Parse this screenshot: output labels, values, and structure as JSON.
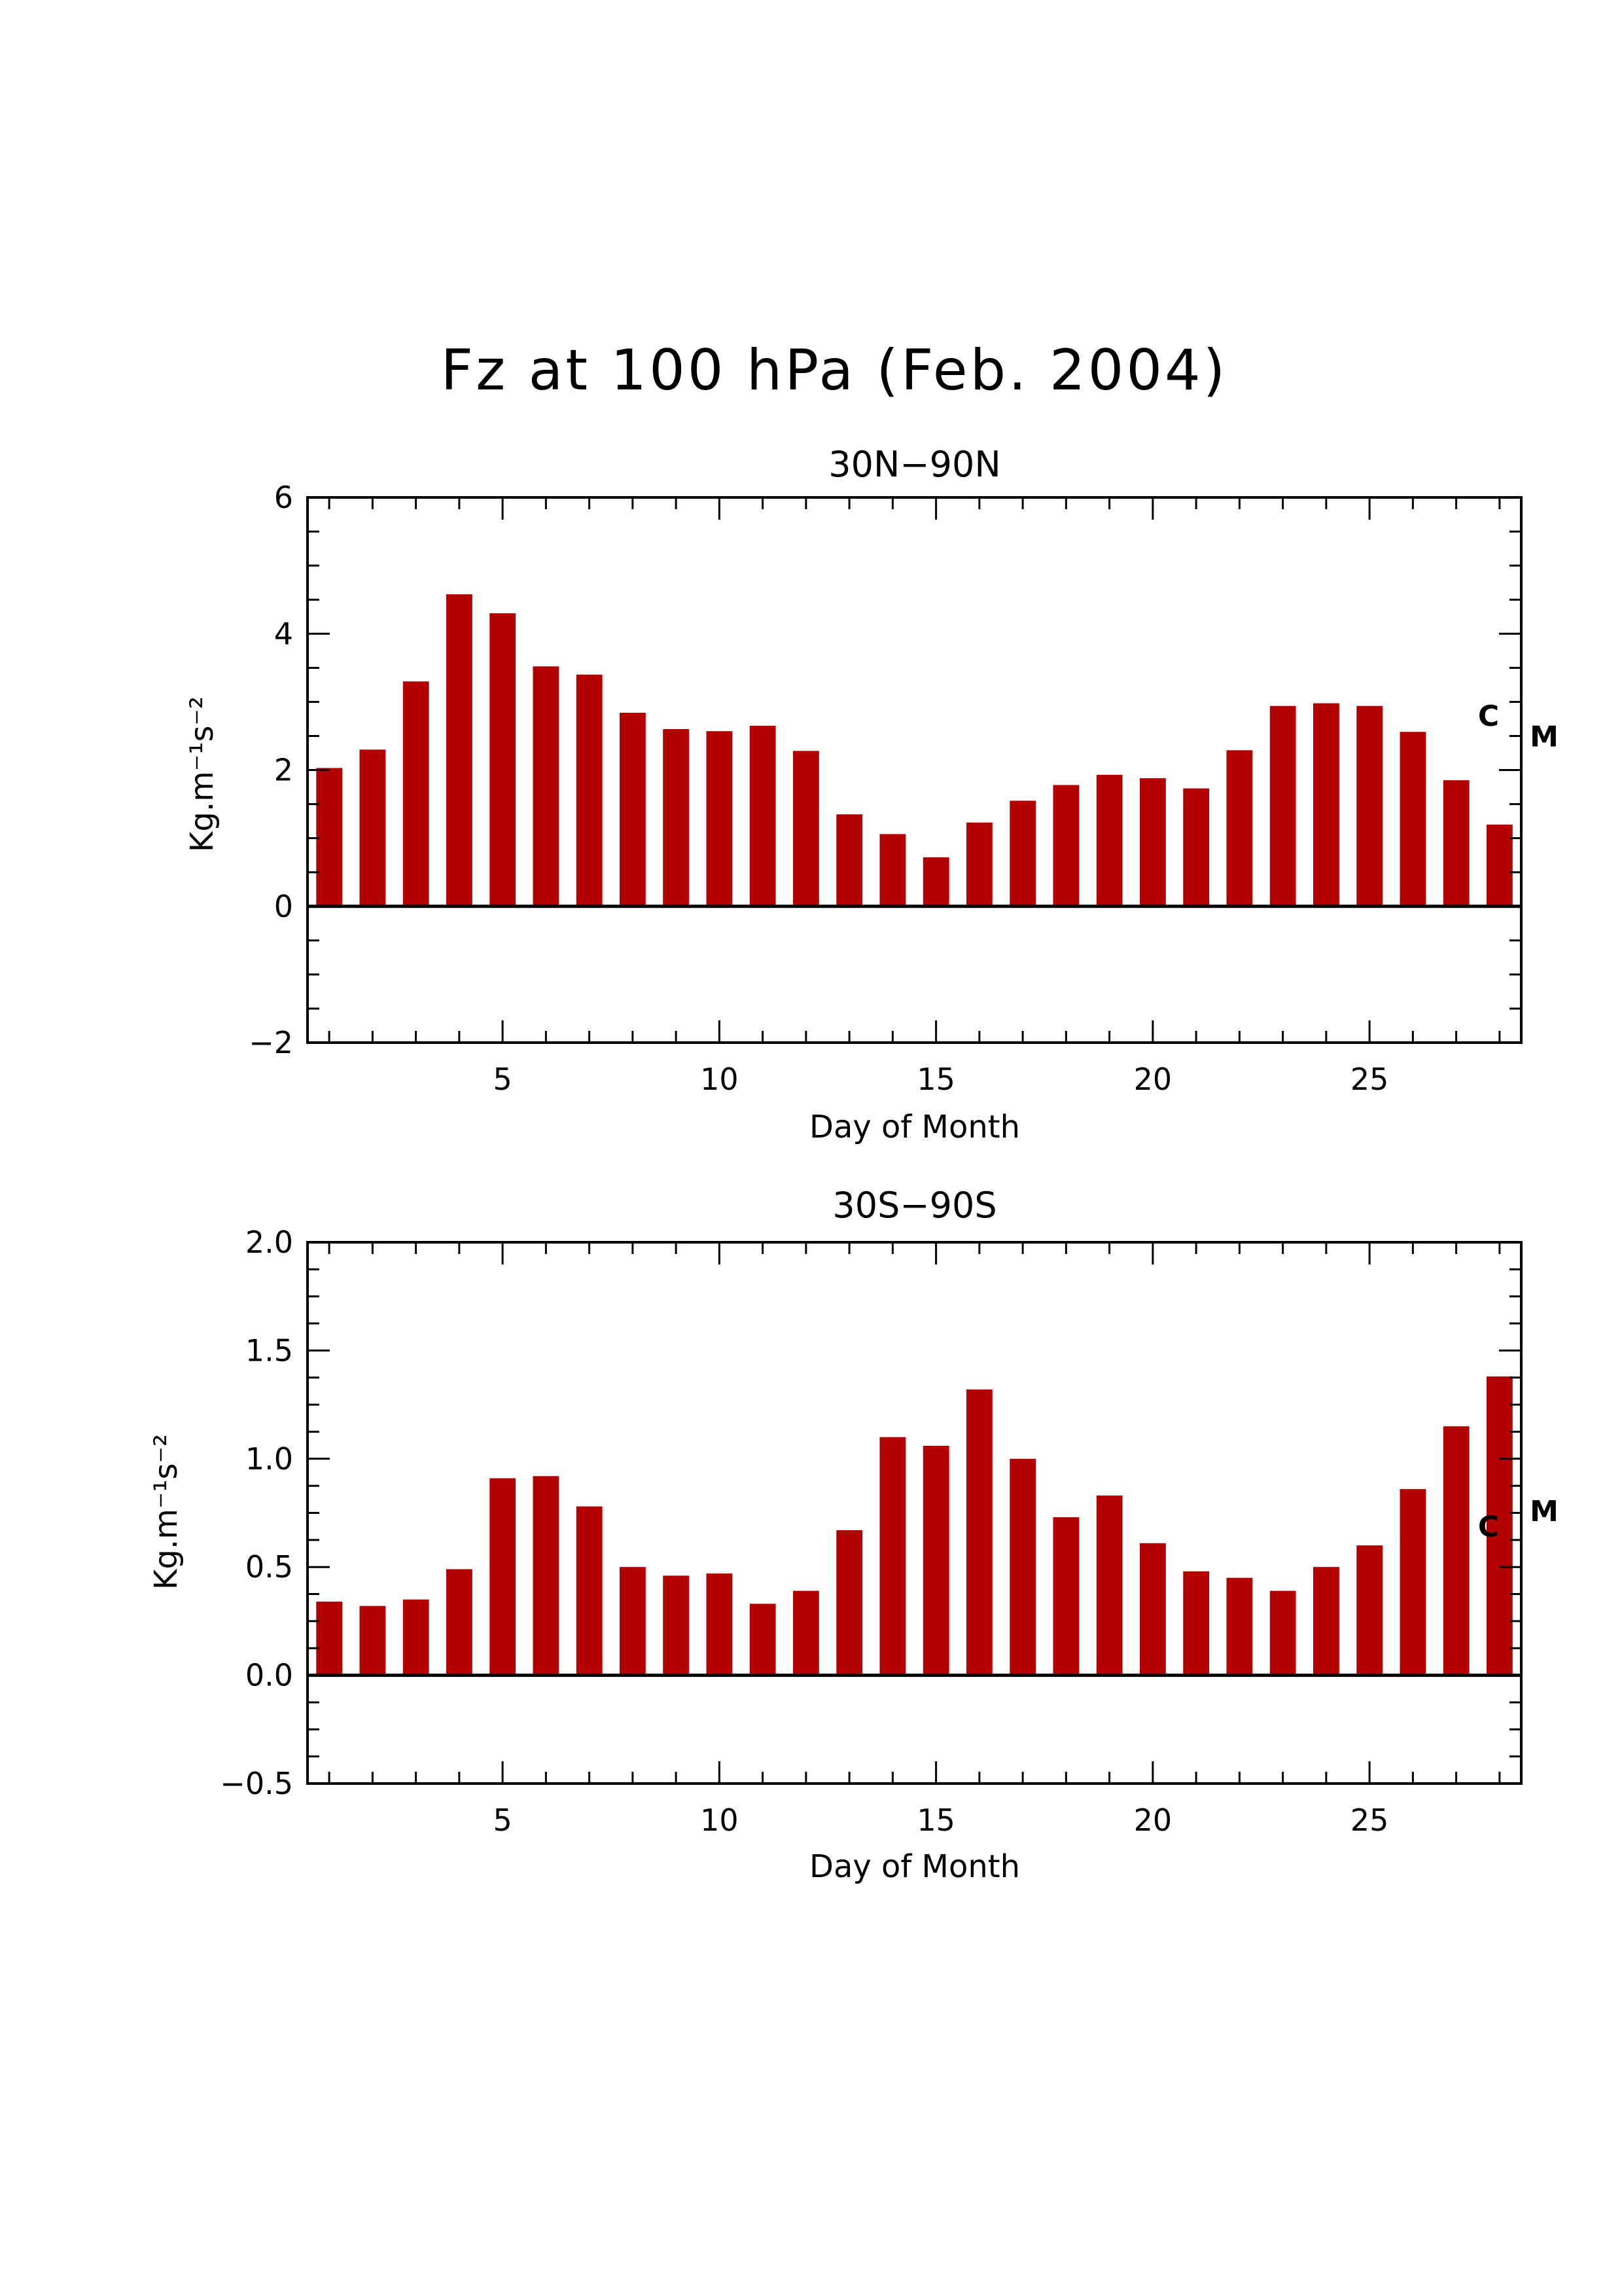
{
  "title": "Fz at 100 hPa (Feb. 2004)",
  "colors": {
    "bar": "#b30000",
    "axis": "#000000"
  },
  "chart_data": [
    {
      "type": "bar",
      "title": "30N−90N",
      "xlabel": "Day of Month",
      "ylabel": "Kg.m⁻¹s⁻²",
      "xlim": [
        0.5,
        28.5
      ],
      "ylim": [
        -2,
        6
      ],
      "xticks": [
        5,
        10,
        15,
        20,
        25
      ],
      "yticks": [
        -2,
        0,
        2,
        4,
        6
      ],
      "ytick_labels": [
        "−2",
        "0",
        "2",
        "4",
        "6"
      ],
      "categories": [
        1,
        2,
        3,
        4,
        5,
        6,
        7,
        8,
        9,
        10,
        11,
        12,
        13,
        14,
        15,
        16,
        17,
        18,
        19,
        20,
        21,
        22,
        23,
        24,
        25,
        26,
        27,
        28
      ],
      "values": [
        2.03,
        2.3,
        3.3,
        4.58,
        4.3,
        3.52,
        3.4,
        2.84,
        2.6,
        2.57,
        2.65,
        2.28,
        1.35,
        1.06,
        0.72,
        1.23,
        1.55,
        1.78,
        1.93,
        1.88,
        1.73,
        2.29,
        2.94,
        2.98,
        2.94,
        2.56,
        1.85,
        1.2
      ],
      "markers": [
        {
          "label": "C",
          "value": 2.8
        },
        {
          "label": "M",
          "value": 2.5
        }
      ]
    },
    {
      "type": "bar",
      "title": "30S−90S",
      "xlabel": "Day of Month",
      "ylabel": "Kg.m⁻¹s⁻²",
      "xlim": [
        0.5,
        28.5
      ],
      "ylim": [
        -0.5,
        2.0
      ],
      "xticks": [
        5,
        10,
        15,
        20,
        25
      ],
      "yticks": [
        -0.5,
        0.0,
        0.5,
        1.0,
        1.5,
        2.0
      ],
      "ytick_labels": [
        "−0.5",
        "0.0",
        "0.5",
        "1.0",
        "1.5",
        "2.0"
      ],
      "categories": [
        1,
        2,
        3,
        4,
        5,
        6,
        7,
        8,
        9,
        10,
        11,
        12,
        13,
        14,
        15,
        16,
        17,
        18,
        19,
        20,
        21,
        22,
        23,
        24,
        25,
        26,
        27,
        28
      ],
      "values": [
        0.34,
        0.32,
        0.35,
        0.49,
        0.91,
        0.92,
        0.78,
        0.5,
        0.46,
        0.47,
        0.33,
        0.39,
        0.67,
        1.1,
        1.06,
        1.32,
        1.0,
        0.73,
        0.83,
        0.61,
        0.48,
        0.45,
        0.39,
        0.5,
        0.6,
        0.86,
        1.15,
        1.38
      ],
      "markers": [
        {
          "label": "C",
          "value": 0.69
        },
        {
          "label": "M",
          "value": 0.76
        }
      ]
    }
  ]
}
